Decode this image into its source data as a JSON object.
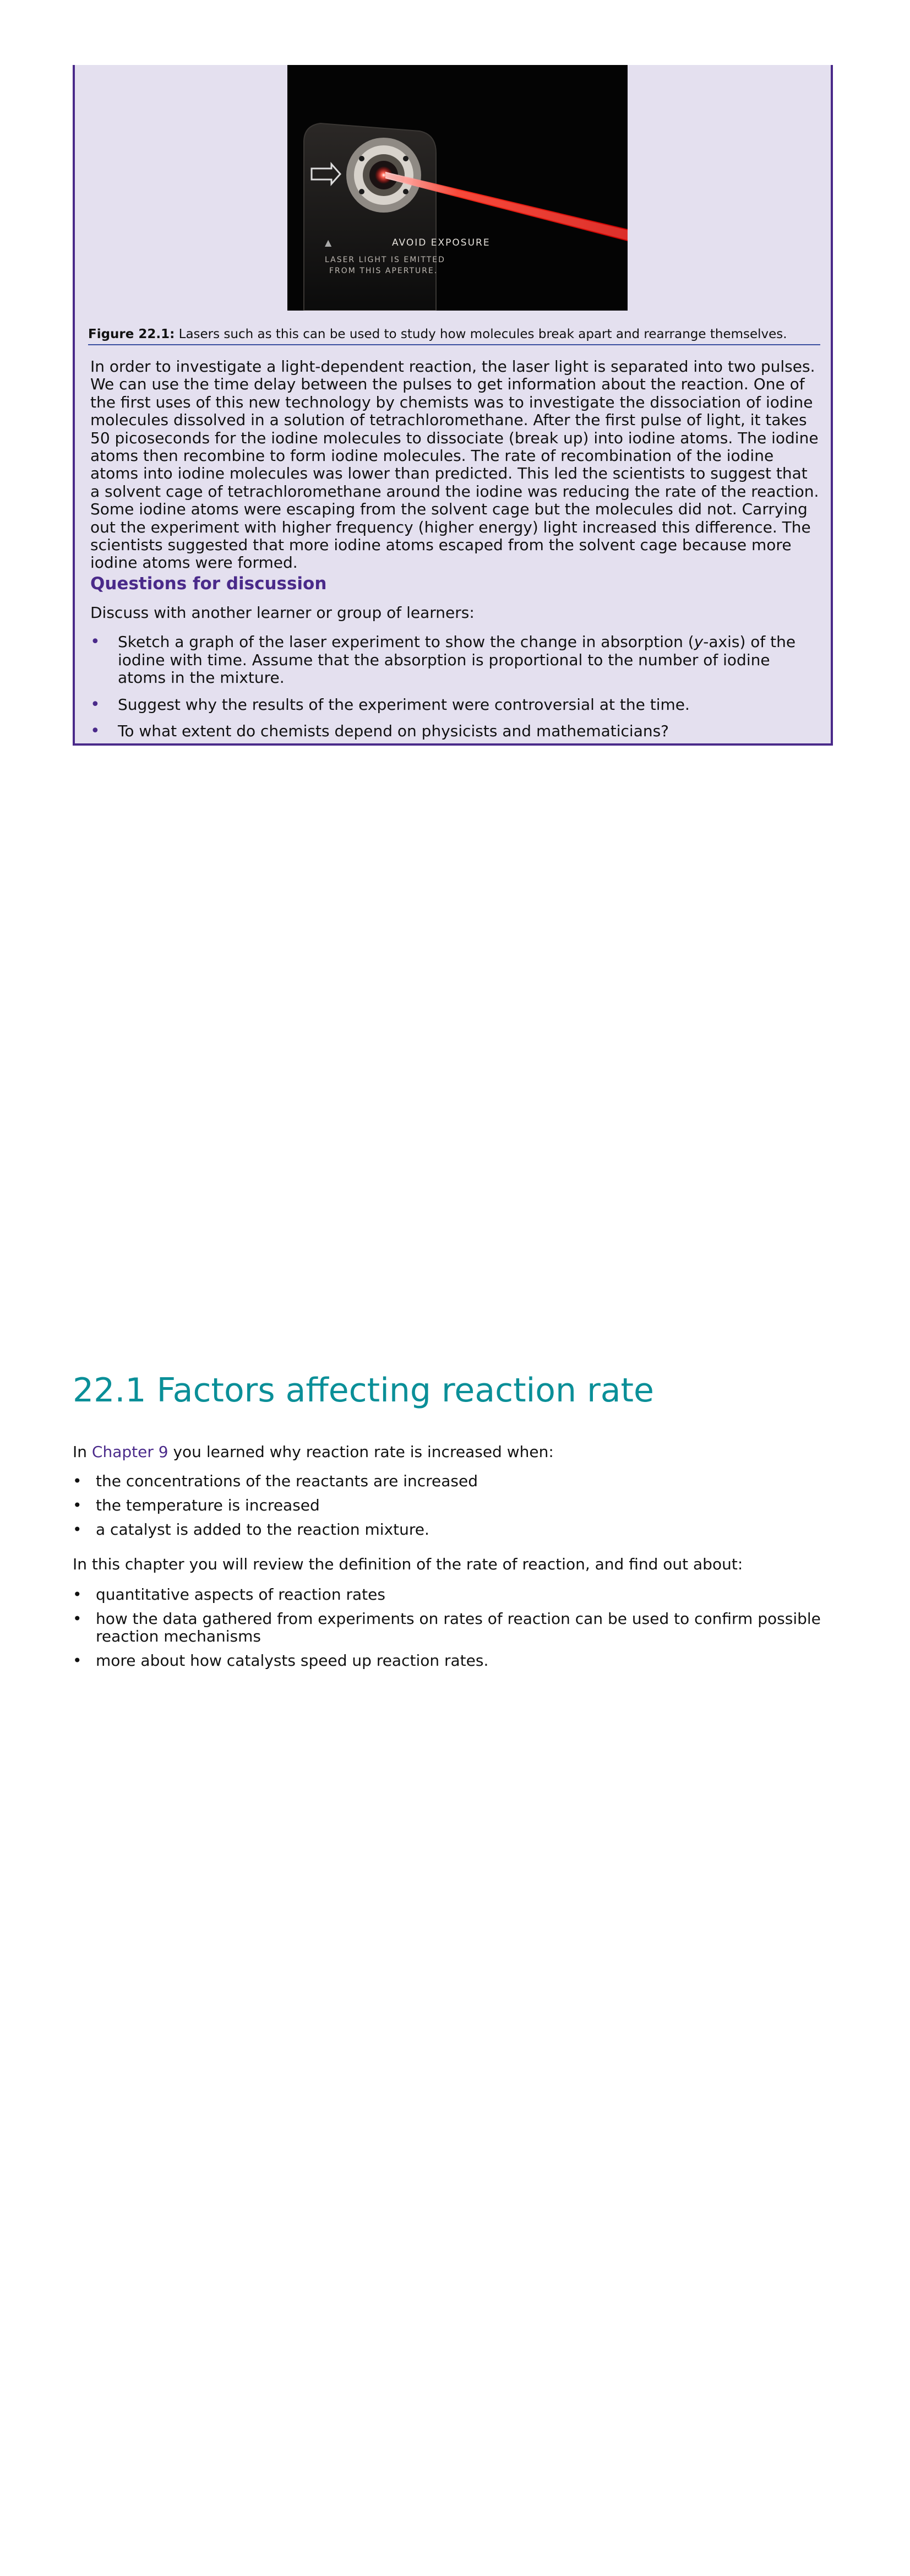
{
  "figure": {
    "photo_text": {
      "avoid": "AVOID EXPOSURE",
      "line1": "LASER LIGHT IS EMITTED",
      "line2": "FROM THIS APERTURE."
    },
    "caption_label": "Figure 22.1:",
    "caption_text": " Lasers such as this can be used to study how molecules break apart and rearrange themselves."
  },
  "reading": {
    "paragraph": "In order to investigate a light-dependent reaction, the laser light is separated into two pulses. We can use the time delay between the pulses to get information about the reaction. One of the first uses of this new technology by chemists was to investigate the dissociation of iodine molecules dissolved in a solution of tetrachloromethane. After the first pulse of light, it takes 50 picoseconds for the iodine molecules to dissociate (break up) into iodine atoms. The iodine atoms then recombine to form iodine molecules. The rate of recombination of the iodine atoms into iodine molecules was lower than predicted. This led the scientists to suggest that a solvent cage of tetrachloromethane around the iodine was reducing the rate of the reaction. Some iodine atoms were escaping from the solvent cage but the molecules did not. Carrying out the experiment with higher frequency (higher energy) light increased this difference. The scientists suggested that more iodine atoms escaped from the solvent cage because more iodine atoms were formed.",
    "questions_heading": "Questions for discussion",
    "discuss_intro": "Discuss with another learner or group of learners:",
    "questions": {
      "q1_before": "Sketch a graph of the laser experiment to show the change in absorption (",
      "q1_italic": "y",
      "q1_after": "-axis) of the iodine with time. Assume that the absorption is proportional to the number of iodine atoms in the mixture.",
      "q2": "Suggest why the results of the experiment were controversial at the time.",
      "q3": "To what extent do chemists depend on physicists and mathematicians?"
    }
  },
  "section": {
    "heading": "22.1 Factors affecting reaction rate",
    "intro_before": "In ",
    "intro_link": "Chapter 9",
    "intro_after": " you learned why reaction rate is increased when:",
    "conditions": [
      "the concentrations of the reactants are increased",
      "the temperature is increased",
      "a catalyst is added to the reaction mixture."
    ],
    "review_text": "In this chapter you will review the definition of the rate of reaction, and find out about:",
    "topics": [
      "quantitative aspects of reaction rates",
      "how the data gathered from experiments on rates of reaction can be used to confirm possible reaction mechanisms",
      "more about how catalysts speed up reaction rates."
    ]
  }
}
